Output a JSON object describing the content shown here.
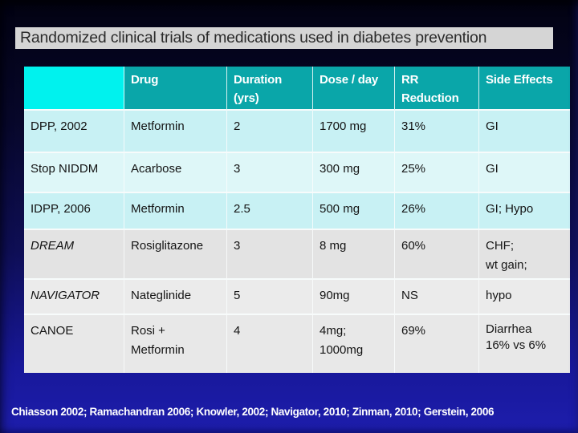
{
  "title": "Randomized clinical trials of medications used in diabetes prevention",
  "table": {
    "columns": [
      "",
      "Drug",
      "Duration\n(yrs)",
      "Dose / day",
      "RR\nReduction",
      "Side Effects"
    ],
    "rows": [
      {
        "trial": "DPP, 2002",
        "drug": "Metformin",
        "duration": "2",
        "dose": "1700 mg",
        "rr": "31%",
        "side_effects": "GI"
      },
      {
        "trial": "Stop NIDDM",
        "drug": "Acarbose",
        "duration": "3",
        "dose": "300 mg",
        "rr": "25%",
        "side_effects": "GI"
      },
      {
        "trial": "IDPP, 2006",
        "drug": "Metformin",
        "duration": "2.5",
        "dose": "500 mg",
        "rr": "26%",
        "side_effects": "GI; Hypo"
      },
      {
        "trial": "DREAM",
        "drug": "Rosiglitazone",
        "duration": "3",
        "dose": "8 mg",
        "rr": "60%",
        "side_effects": "CHF;\nwt gain;"
      },
      {
        "trial": "NAVIGATOR",
        "drug": "Nateglinide",
        "duration": "5",
        "dose": "90mg",
        "rr": "NS",
        "side_effects": "hypo"
      },
      {
        "trial": "CANOE",
        "drug": "Rosi +\nMetformin",
        "duration": "4",
        "dose": "4mg;\n1000mg",
        "rr": "69%",
        "side_effects": "Diarrhea\n16% vs 6%"
      }
    ]
  },
  "footer": "Chiasson 2002; Ramachandran 2006; Knowler, 2002; Navigator, 2010; Zinman, 2010; Gerstein, 2006",
  "colors": {
    "background_top": "#020212",
    "background_bottom": "#1d1dac",
    "title_background": "#d5d5d5",
    "title_text": "#2b2b2b",
    "header_teal": "#0aa6a9",
    "header_corner_cyan": "#00f2ee",
    "header_text": "#ffffff",
    "row_cyan": "#c8f1f4",
    "row_cyan_light": "#def7f8",
    "row_gray": "#e3e3e3",
    "row_gray_light": "#ebebeb",
    "body_text": "#141414",
    "footer_text": "#ffffff",
    "grid_line": "#f7fbfb"
  }
}
